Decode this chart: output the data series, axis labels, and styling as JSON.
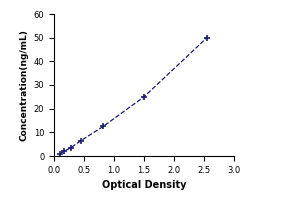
{
  "x_data": [
    0.1,
    0.17,
    0.28,
    0.45,
    0.82,
    1.5,
    2.55
  ],
  "y_data": [
    1.0,
    2.0,
    3.5,
    6.5,
    12.5,
    25.0,
    50.0
  ],
  "line_color": "#1a1a6e",
  "marker_style": "+",
  "marker_size": 5,
  "marker_linewidth": 1.2,
  "line_style": "--",
  "line_width": 0.9,
  "xlabel": "Optical Density",
  "ylabel": "Concentration(ng/mL)",
  "xlim": [
    0,
    3
  ],
  "ylim": [
    0,
    60
  ],
  "xticks": [
    0,
    0.5,
    1,
    1.5,
    2,
    2.5,
    3
  ],
  "yticks": [
    0,
    10,
    20,
    30,
    40,
    50,
    60
  ],
  "bg_color": "#ffffff",
  "xlabel_fontsize": 7,
  "ylabel_fontsize": 6.5,
  "tick_fontsize": 6,
  "xlabel_fontweight": "bold",
  "ylabel_fontweight": "bold"
}
